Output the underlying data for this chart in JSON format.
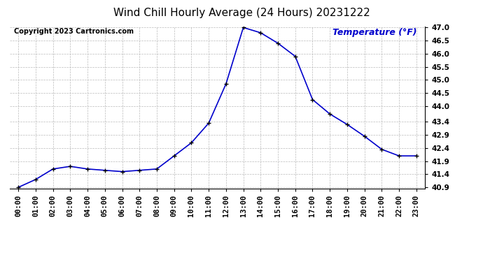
{
  "title": "Wind Chill Hourly Average (24 Hours) 20231222",
  "copyright_text": "Copyright 2023 Cartronics.com",
  "legend_label": "Temperature (°F)",
  "hours": [
    "00:00",
    "01:00",
    "02:00",
    "03:00",
    "04:00",
    "05:00",
    "06:00",
    "07:00",
    "08:00",
    "09:00",
    "10:00",
    "11:00",
    "12:00",
    "13:00",
    "14:00",
    "15:00",
    "16:00",
    "17:00",
    "18:00",
    "19:00",
    "20:00",
    "21:00",
    "22:00",
    "23:00"
  ],
  "values": [
    40.9,
    41.2,
    41.6,
    41.7,
    41.6,
    41.55,
    41.5,
    41.55,
    41.6,
    42.1,
    42.6,
    43.35,
    44.85,
    47.0,
    46.8,
    46.4,
    45.9,
    44.25,
    43.7,
    43.3,
    42.85,
    42.35,
    42.1,
    42.1
  ],
  "ylim_min": 40.9,
  "ylim_max": 47.0,
  "line_color": "#0000cc",
  "marker_color": "black",
  "grid_color": "#bbbbbb",
  "bg_color": "#ffffff",
  "title_fontsize": 11,
  "copyright_fontsize": 7,
  "legend_fontsize": 9,
  "tick_fontsize": 7.5,
  "ytick_values": [
    40.9,
    41.4,
    41.9,
    42.4,
    42.9,
    43.4,
    44.0,
    44.5,
    45.0,
    45.5,
    46.0,
    46.5,
    47.0
  ]
}
